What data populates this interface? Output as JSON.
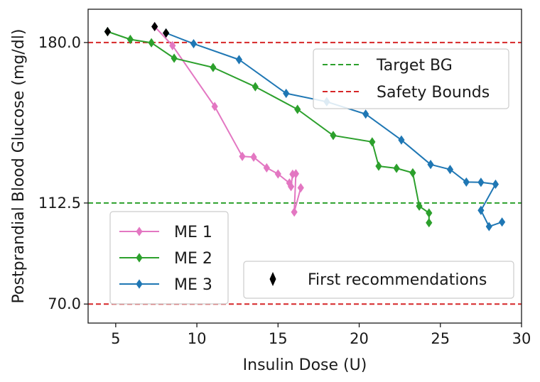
{
  "chart_data": {
    "type": "line",
    "title": "",
    "xlabel": "Insulin Dose (U)",
    "ylabel": "Postprandial Blood Glucose (mg/dl)",
    "xlim": [
      3.3,
      30
    ],
    "ylim": [
      62,
      194
    ],
    "xticks": [
      5,
      10,
      15,
      20,
      25,
      30
    ],
    "yticks": [
      70.0,
      112.5,
      180.0
    ],
    "xtick_labels": [
      "5",
      "10",
      "15",
      "20",
      "25",
      "30"
    ],
    "ytick_labels": [
      "70.0",
      "112.5",
      "180.0"
    ],
    "grid": false,
    "series": [
      {
        "name": "ME 1",
        "color": "#e377c2",
        "x": [
          7.4,
          8.5,
          11.1,
          12.8,
          13.5,
          14.3,
          15.0,
          15.7,
          15.8,
          15.9,
          16.1,
          16.0,
          16.4
        ],
        "y": [
          186.7,
          178.7,
          153.1,
          132.1,
          131.8,
          127.3,
          124.7,
          120.9,
          119.4,
          124.6,
          124.8,
          108.7,
          118.9
        ]
      },
      {
        "name": "ME 2",
        "color": "#2ca02c",
        "x": [
          4.5,
          5.9,
          7.2,
          8.6,
          11.0,
          13.6,
          16.2,
          18.4,
          20.8,
          21.2,
          22.3,
          23.3,
          23.7,
          24.3,
          24.3
        ],
        "y": [
          184.6,
          181.3,
          179.9,
          173.4,
          169.5,
          161.4,
          151.9,
          140.9,
          138.2,
          128.0,
          127.1,
          125.2,
          111.2,
          108.3,
          104.2
        ]
      },
      {
        "name": "ME 3",
        "color": "#1f77b4",
        "x": [
          8.1,
          9.8,
          12.6,
          15.5,
          18.0,
          20.4,
          22.6,
          24.4,
          25.6,
          26.6,
          27.5,
          28.4,
          27.5,
          28.0,
          28.8
        ],
        "y": [
          184.0,
          179.5,
          172.8,
          158.6,
          155.1,
          149.9,
          139.0,
          128.7,
          126.6,
          121.3,
          121.2,
          120.4,
          109.4,
          102.6,
          104.5
        ]
      }
    ],
    "first_recommendations": {
      "name": "First recommendations",
      "color": "#000000",
      "x": [
        4.5,
        7.4,
        8.1
      ],
      "y": [
        184.6,
        186.7,
        184.0
      ]
    },
    "reference_lines": [
      {
        "name": "Target BG",
        "y": 112.5,
        "color": "#2ca02c",
        "style": "dashed"
      },
      {
        "name": "Safety Bounds",
        "y": 180.0,
        "color": "#d62728",
        "style": "dashed"
      },
      {
        "name": "",
        "y": 70.0,
        "color": "#d62728",
        "style": "dashed"
      }
    ],
    "legends": [
      {
        "placement": "upper-right",
        "entries": [
          "Target BG",
          "Safety Bounds"
        ]
      },
      {
        "placement": "lower-left",
        "entries": [
          "ME 1",
          "ME 2",
          "ME 3"
        ]
      },
      {
        "placement": "lower-right",
        "entries": [
          "First recommendations"
        ]
      }
    ]
  }
}
